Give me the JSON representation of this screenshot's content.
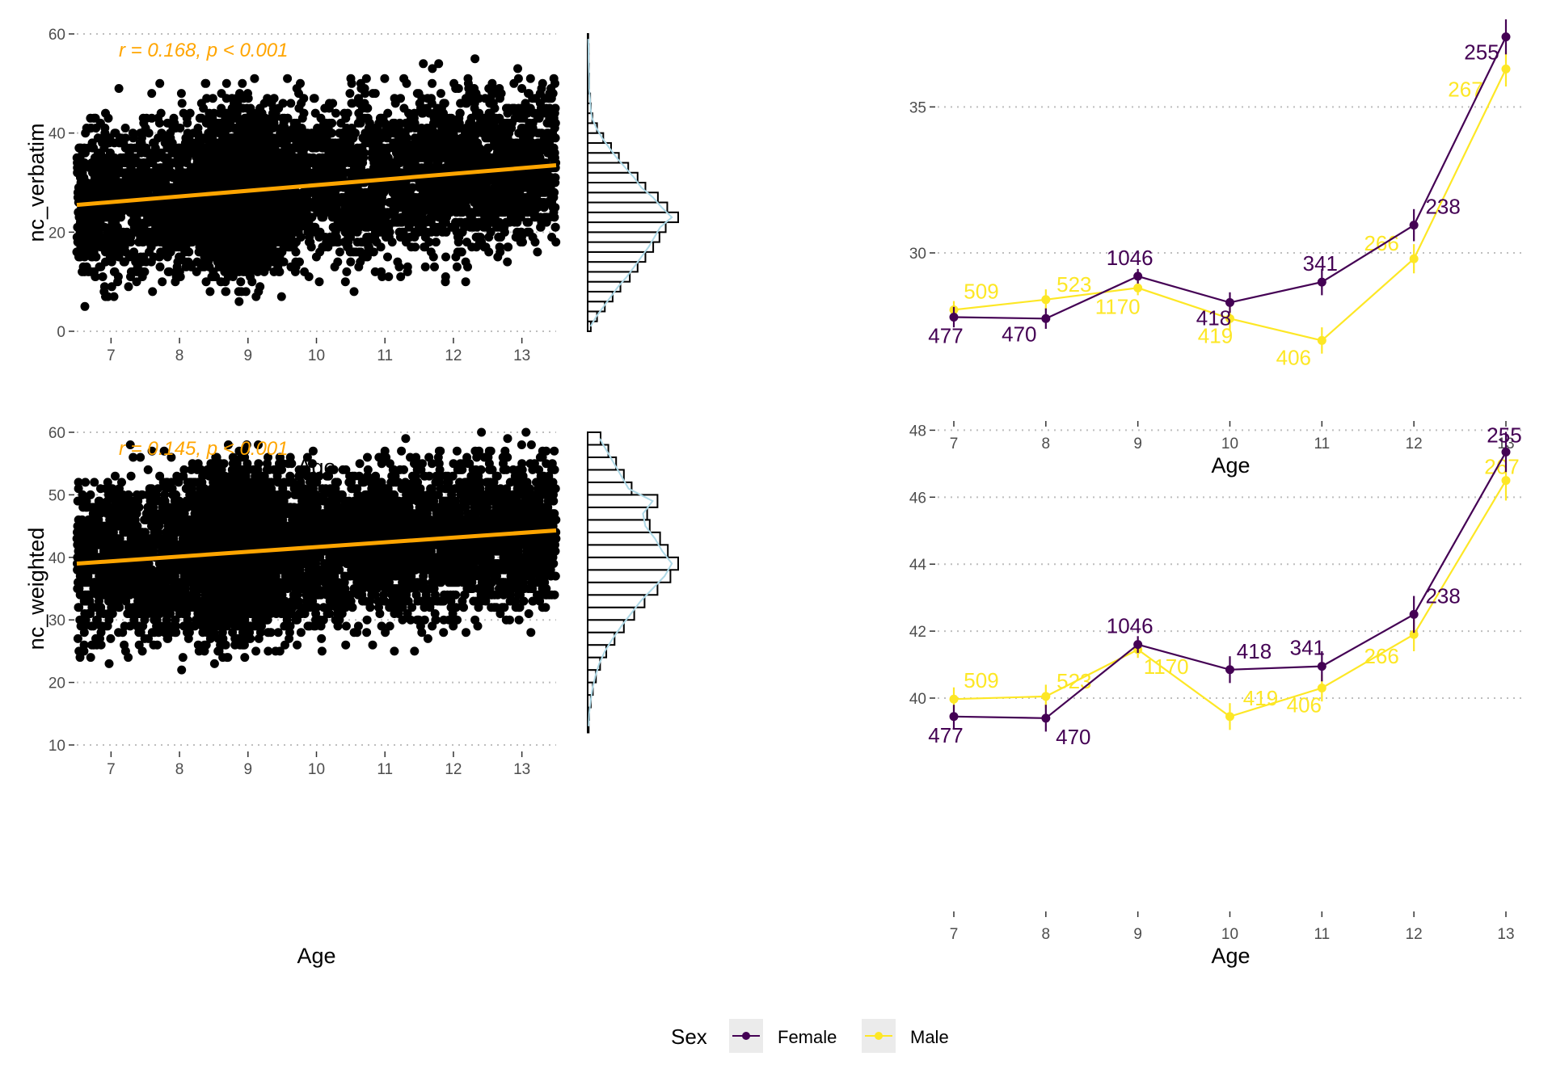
{
  "chart_data": [
    {
      "type": "scatter",
      "panel": "top-left",
      "xlabel": "Age",
      "ylabel": "nc_verbatim",
      "xlim": [
        6.5,
        13.5
      ],
      "ylim": [
        0,
        60
      ],
      "x_ticks": [
        7,
        8,
        9,
        10,
        11,
        12,
        13
      ],
      "y_ticks": [
        0,
        20,
        40,
        60
      ],
      "annotation": "r = 0.168, p < 0.001",
      "trend_line": {
        "color": "#FFA500",
        "x": [
          6.5,
          13.5
        ],
        "y": [
          25.5,
          33.5
        ]
      },
      "point_color": "#000000",
      "point_cloud": {
        "n": 6500,
        "x_range": [
          6.5,
          13.5
        ],
        "y_range": [
          0,
          60
        ],
        "dense_around_x": 8.9
      },
      "grid": "horizontal dotted",
      "marginal_histogram": {
        "orientation": "horizontal",
        "bin_width": 2,
        "bins_from": 0,
        "counts": [
          10,
          30,
          55,
          80,
          105,
          135,
          160,
          185,
          210,
          230,
          250,
          290,
          255,
          225,
          185,
          160,
          130,
          100,
          75,
          50,
          30,
          15,
          10,
          8,
          5,
          5,
          4,
          3,
          3,
          2
        ],
        "density_color": "#ADD8E6"
      }
    },
    {
      "type": "line",
      "panel": "top-right",
      "xlabel": "Age",
      "ylabel": "",
      "ylim": [
        26.9,
        37.5
      ],
      "y_ticks": [
        30,
        35
      ],
      "categories": [
        7,
        8,
        9,
        10,
        11,
        12,
        13
      ],
      "series": [
        {
          "name": "Female",
          "color": "#440154",
          "values": [
            27.8,
            27.75,
            29.2,
            28.3,
            29.0,
            30.95,
            37.4
          ],
          "error": [
            0.35,
            0.35,
            0.25,
            0.35,
            0.45,
            0.55,
            0.6
          ],
          "labels": [
            "477",
            "470",
            "1046",
            "418",
            "341",
            "238",
            "255"
          ]
        },
        {
          "name": "Male",
          "color": "#FDE725",
          "values": [
            28.05,
            28.4,
            28.8,
            27.75,
            27.0,
            29.8,
            36.3
          ],
          "error": [
            0.3,
            0.35,
            0.25,
            0.4,
            0.45,
            0.5,
            0.6
          ],
          "labels": [
            "509",
            "523",
            "1170",
            "419",
            "406",
            "266",
            "267"
          ]
        }
      ],
      "grid": "horizontal dotted"
    },
    {
      "type": "scatter",
      "panel": "bottom-left",
      "xlabel": "Age",
      "ylabel": "nc_weighted",
      "xlim": [
        6.5,
        13.5
      ],
      "ylim": [
        10,
        60
      ],
      "x_ticks": [
        7,
        8,
        9,
        10,
        11,
        12,
        13
      ],
      "y_ticks": [
        10,
        20,
        30,
        40,
        50,
        60
      ],
      "annotation": "r = 0.145, p < 0.001",
      "trend_line": {
        "color": "#FFA500",
        "x": [
          6.5,
          13.5
        ],
        "y": [
          39.0,
          44.3
        ]
      },
      "point_color": "#000000",
      "point_cloud": {
        "n": 6500,
        "x_range": [
          6.5,
          13.5
        ],
        "y_range": [
          12,
          60
        ],
        "dense_around_x": 8.9
      },
      "grid": "horizontal dotted",
      "marginal_histogram": {
        "orientation": "horizontal",
        "bin_width": 2,
        "bins_from": 12,
        "counts": [
          2,
          3,
          6,
          10,
          16,
          24,
          36,
          52,
          70,
          90,
          110,
          135,
          160,
          175,
          155,
          140,
          120,
          115,
          135,
          85,
          70,
          55,
          40,
          25
        ],
        "density_color": "#ADD8E6"
      }
    },
    {
      "type": "line",
      "panel": "bottom-right",
      "xlabel": "Age",
      "ylabel": "",
      "ylim": [
        38.6,
        48.3
      ],
      "y_ticks": [
        40,
        42,
        44,
        46,
        48
      ],
      "categories": [
        7,
        8,
        9,
        10,
        11,
        12,
        13
      ],
      "series": [
        {
          "name": "Female",
          "color": "#440154",
          "values": [
            39.45,
            39.4,
            41.6,
            40.85,
            40.95,
            42.5,
            47.35
          ],
          "error": [
            0.35,
            0.4,
            0.25,
            0.4,
            0.45,
            0.55,
            0.6
          ],
          "labels": [
            "477",
            "470",
            "1046",
            "418",
            "341",
            "238",
            "255"
          ]
        },
        {
          "name": "Male",
          "color": "#FDE725",
          "values": [
            39.97,
            40.05,
            41.45,
            39.45,
            40.3,
            41.9,
            46.5
          ],
          "error": [
            0.35,
            0.35,
            0.25,
            0.4,
            0.4,
            0.5,
            0.6
          ],
          "labels": [
            "509",
            "523",
            "1170",
            "419",
            "406",
            "266",
            "267"
          ]
        }
      ],
      "grid": "horizontal dotted"
    }
  ],
  "legend": {
    "title": "Sex",
    "items": [
      {
        "label": "Female",
        "color": "#440154"
      },
      {
        "label": "Male",
        "color": "#FDE725"
      }
    ]
  }
}
